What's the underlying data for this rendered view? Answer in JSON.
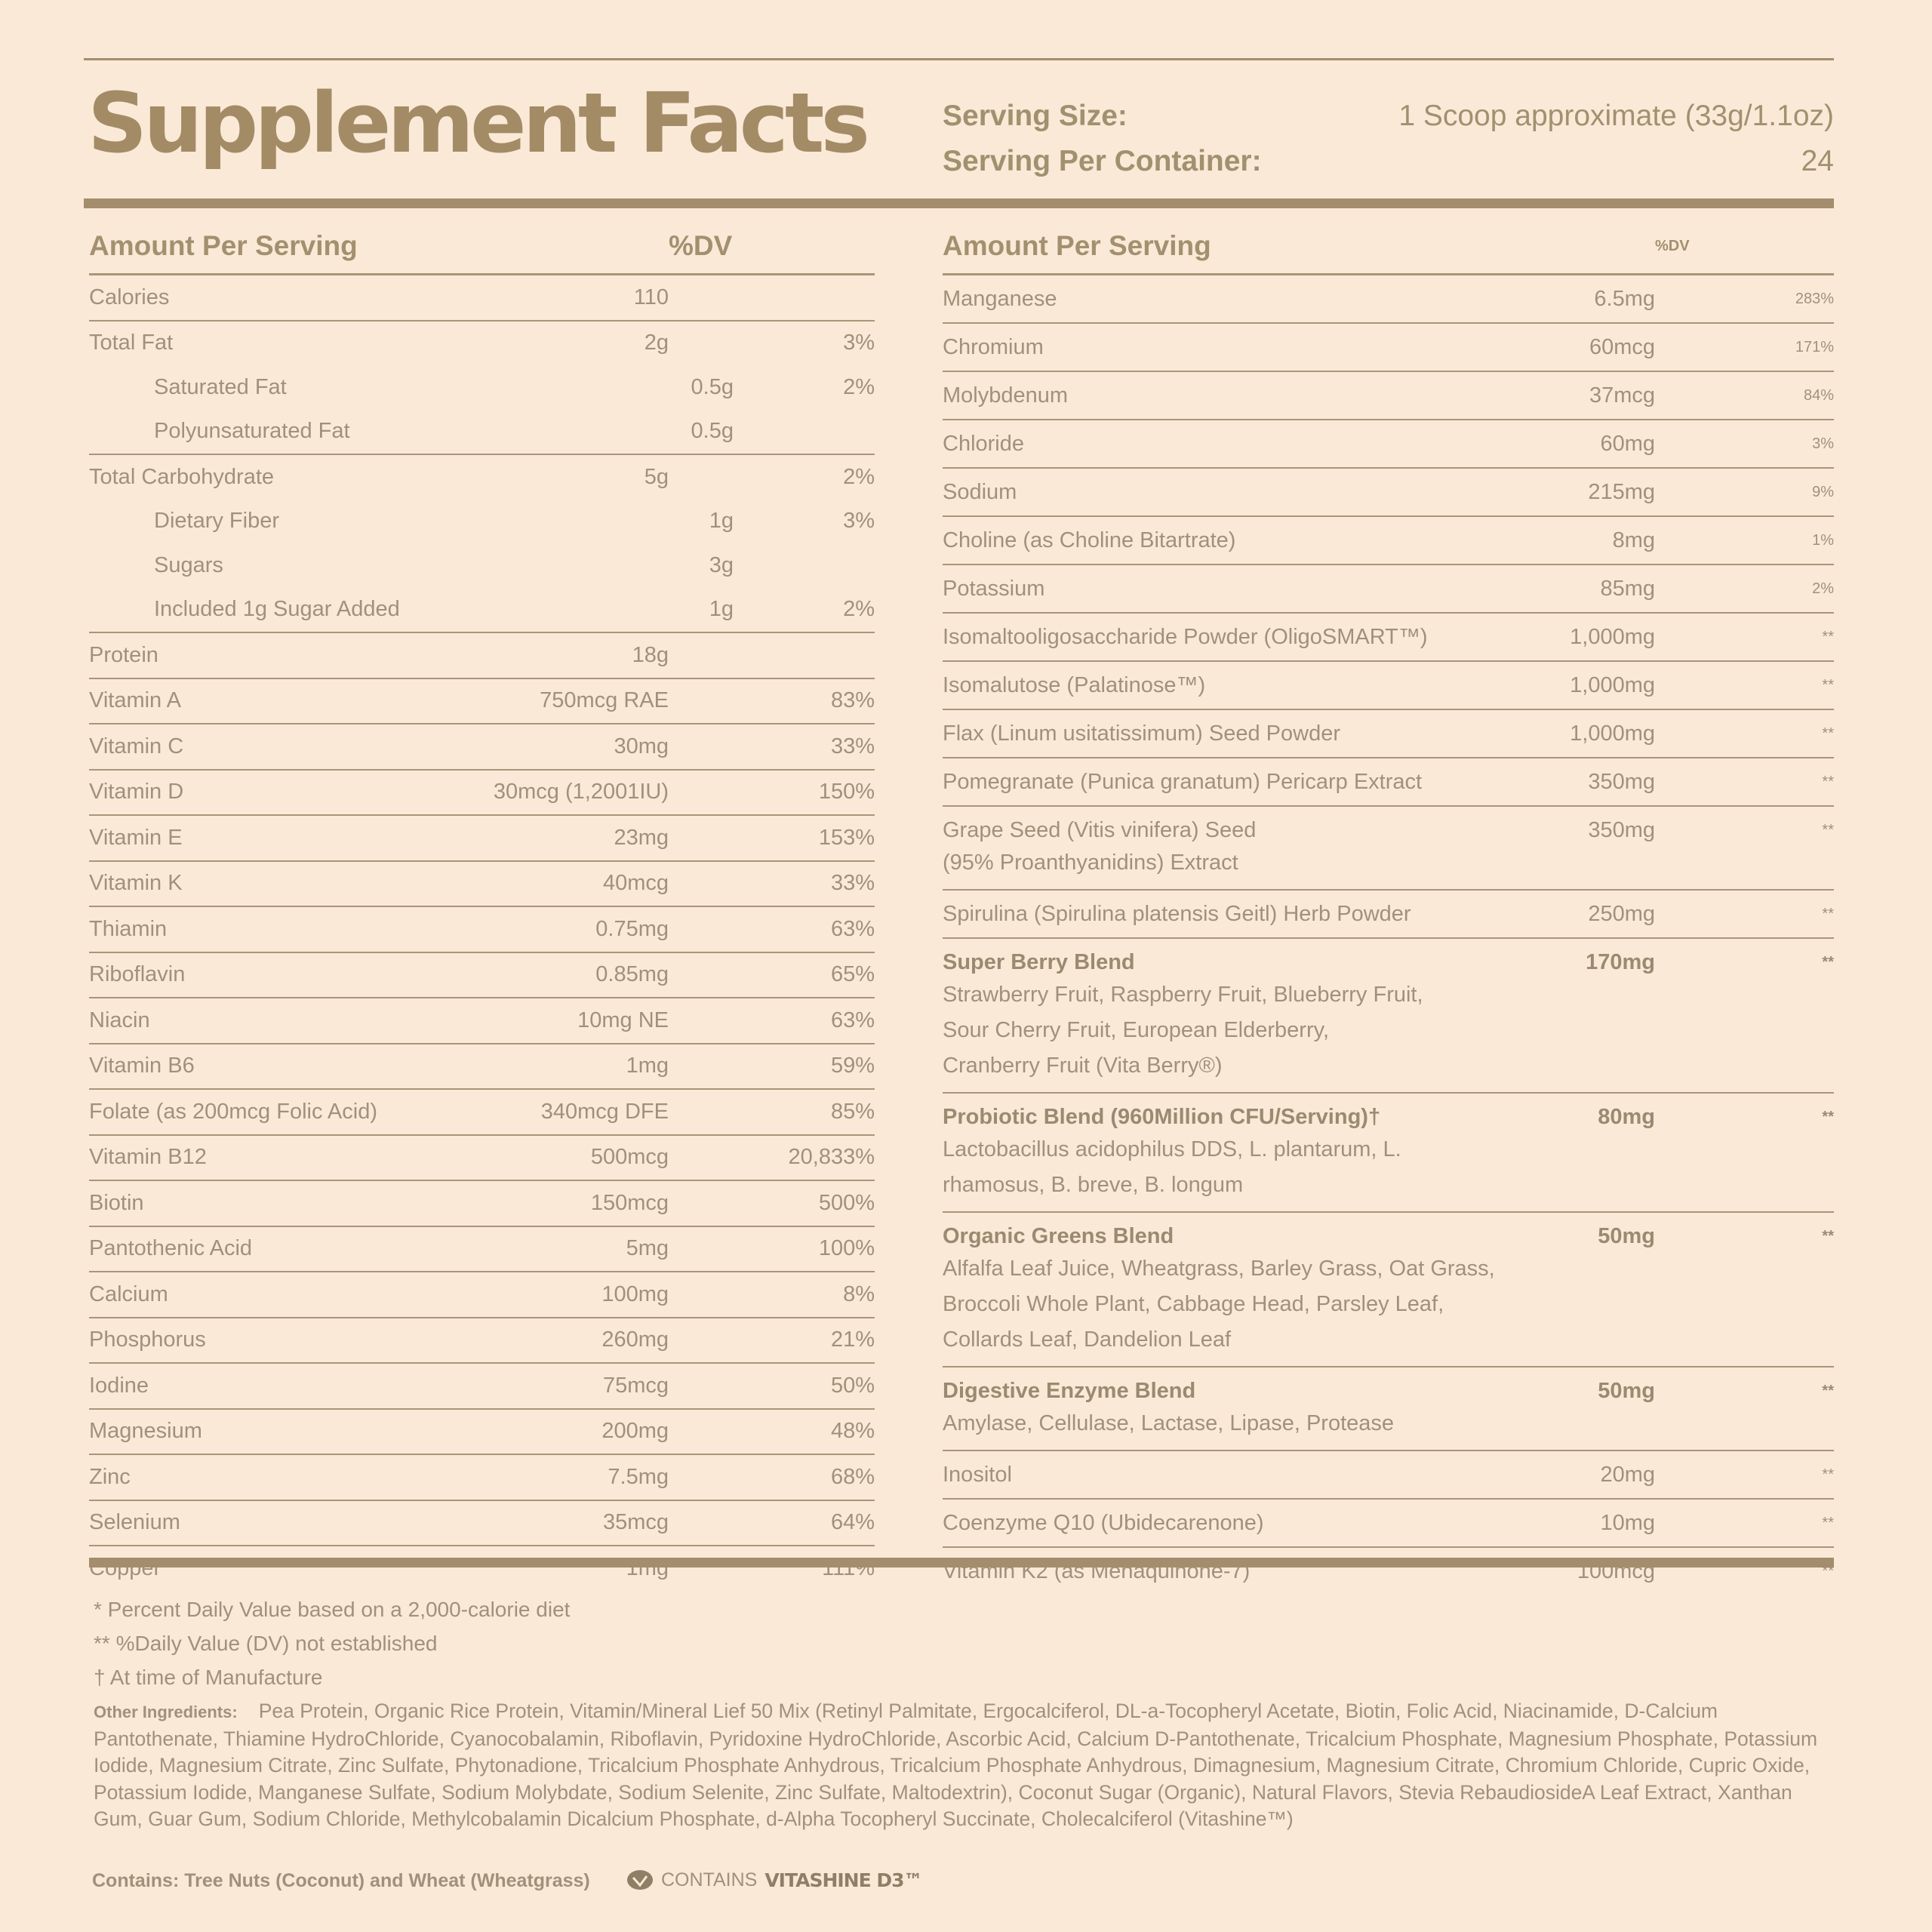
{
  "header": {
    "title": "Supplement Facts",
    "serving_size_label": "Serving Size:",
    "serving_size": "1 Scoop approximate (33g/1.1oz)",
    "servings_label": "Serving Per Container:",
    "servings": "24"
  },
  "left_table": {
    "columns": [
      "Amount Per Serving",
      "%DV"
    ],
    "rows": [
      {
        "name": "Calories",
        "amount": "110"
      },
      {
        "name": "Total Fat",
        "amount": "2g",
        "dv": "3%",
        "items": [
          {
            "name": "Saturated Fat",
            "amount": "0.5g",
            "dv": "2%"
          },
          {
            "name": "Polyunsaturated Fat",
            "amount": "0.5g"
          }
        ]
      },
      {
        "name": "Total Carbohydrate",
        "amount": "5g",
        "dv": "2%",
        "items": [
          {
            "name": "Dietary Fiber",
            "amount": "1g",
            "dv": "3%"
          },
          {
            "name": "Sugars",
            "amount": "3g"
          },
          {
            "name": "Included 1g Sugar Added",
            "amount": "1g",
            "dv": "2%"
          }
        ]
      },
      {
        "name": "Protein",
        "amount": "18g"
      },
      {
        "name": "Vitamin A",
        "amount": "750mcg RAE",
        "dv": "83%"
      },
      {
        "name": "Vitamin C",
        "amount": "30mg",
        "dv": "33%"
      },
      {
        "name": "Vitamin D",
        "amount": "30mcg (1,2001IU)",
        "dv": "150%"
      },
      {
        "name": "Vitamin E",
        "amount": "23mg",
        "dv": "153%"
      },
      {
        "name": "Vitamin K",
        "amount": "40mcg",
        "dv": "33%"
      },
      {
        "name": "Thiamin",
        "amount": "0.75mg",
        "dv": "63%"
      },
      {
        "name": "Riboflavin",
        "amount": "0.85mg",
        "dv": "65%"
      },
      {
        "name": "Niacin",
        "amount": "10mg NE",
        "dv": "63%"
      },
      {
        "name": "Vitamin B6",
        "amount": "1mg",
        "dv": "59%"
      },
      {
        "name": "Folate (as 200mcg Folic Acid)",
        "amount": "340mcg DFE",
        "dv": "85%"
      },
      {
        "name": "Vitamin B12",
        "amount": "500mcg",
        "dv": "20,833%"
      },
      {
        "name": "Biotin",
        "amount": "150mcg",
        "dv": "500%"
      },
      {
        "name": "Pantothenic Acid",
        "amount": "5mg",
        "dv": "100%"
      },
      {
        "name": "Calcium",
        "amount": "100mg",
        "dv": "8%"
      },
      {
        "name": "Phosphorus",
        "amount": "260mg",
        "dv": "21%"
      },
      {
        "name": "Iodine",
        "amount": "75mcg",
        "dv": "50%"
      },
      {
        "name": "Magnesium",
        "amount": "200mg",
        "dv": "48%"
      },
      {
        "name": "Zinc",
        "amount": "7.5mg",
        "dv": "68%"
      },
      {
        "name": "Selenium",
        "amount": "35mcg",
        "dv": "64%"
      },
      {
        "name": "Copper",
        "amount": "1mg",
        "dv": "111%"
      }
    ]
  },
  "right_table": {
    "columns": [
      "Amount Per Serving",
      "%DV"
    ],
    "rows": [
      {
        "name": "Manganese",
        "amount": "6.5mg",
        "dv": "283%"
      },
      {
        "name": "Chromium",
        "amount": "60mcg",
        "dv": "171%"
      },
      {
        "name": "Molybdenum",
        "amount": "37mcg",
        "dv": "84%"
      },
      {
        "name": "Chloride",
        "amount": "60mg",
        "dv": "3%"
      },
      {
        "name": "Sodium",
        "amount": "215mg",
        "dv": "9%"
      },
      {
        "name": "Choline (as Choline Bitartrate)",
        "amount": "8mg",
        "dv": "1%"
      },
      {
        "name": "Potassium",
        "amount": "85mg",
        "dv": "2%"
      },
      {
        "name": "Isomaltooligosaccharide Powder (OligoSMART™)",
        "amount": "1,000mg",
        "dv": "**"
      },
      {
        "name": "Isomalutose (Palatinose™)",
        "amount": "1,000mg",
        "dv": "**"
      },
      {
        "name": "Flax (Linum usitatissimum) Seed Powder",
        "amount": "1,000mg",
        "dv": "**"
      },
      {
        "name": "Pomegranate (Punica granatum) Pericarp Extract",
        "amount": "350mg",
        "dv": "**"
      },
      {
        "name": "Grape Seed (Vitis vinifera) Seed",
        "name_cont": "(95% Proanthyanidins) Extract",
        "amount": "350mg",
        "dv": "**"
      },
      {
        "name": "Spirulina (Spirulina platensis Geitl) Herb Powder",
        "amount": "250mg",
        "dv": "**"
      },
      {
        "name": "Super Berry Blend",
        "amount": "170mg",
        "dv": "**",
        "detail": [
          "Strawberry Fruit, Raspberry Fruit, Blueberry Fruit,",
          "Sour Cherry Fruit, European Elderberry,",
          "Cranberry Fruit  (Vita Berry®)"
        ]
      },
      {
        "name": "Probiotic Blend (960Million CFU/Serving)†",
        "amount": "80mg",
        "dv": "**",
        "detail": [
          "Lactobacillus acidophilus DDS, L. plantarum, L.",
          "rhamosus, B. breve, B. longum"
        ]
      },
      {
        "name": "Organic Greens Blend",
        "amount": "50mg",
        "dv": "**",
        "detail": [
          "Alfalfa Leaf Juice, Wheatgrass, Barley Grass, Oat Grass,",
          "Broccoli Whole Plant, Cabbage Head, Parsley Leaf,",
          "Collards Leaf, Dandelion Leaf"
        ]
      },
      {
        "name": "Digestive Enzyme Blend",
        "amount": "50mg",
        "dv": "**",
        "detail": [
          "Amylase, Cellulase, Lactase, Lipase, Protease"
        ]
      },
      {
        "name": "Inositol",
        "amount": "20mg",
        "dv": "**"
      },
      {
        "name": "Coenzyme Q10 (Ubidecarenone)",
        "amount": "10mg",
        "dv": "**"
      },
      {
        "name": "Vitamin K2 (as Menaquinone-7)",
        "amount": "100mcg",
        "dv": "**"
      }
    ]
  },
  "footnotes": [
    "* Percent Daily Value based on a 2,000-calorie diet",
    "** %Daily Value (DV) not established",
    "† At time of Manufacture"
  ],
  "other_ingredients": {
    "label": "Other Ingredients:",
    "text": "Pea Protein, Organic Rice Protein, Vitamin/Mineral Lief 50 Mix (Retinyl Palmitate, Ergocalciferol, DL-a-Tocopheryl Acetate, Biotin, Folic Acid, Niacinamide, D-Calcium Pantothenate, Thiamine HydroChloride, Cyanocobalamin, Riboflavin, Pyridoxine HydroChloride, Ascorbic Acid, Calcium D-Pantothenate, Tricalcium Phosphate, Magnesium Phosphate, Potassium Iodide, Magnesium Citrate, Zinc Sulfate, Phytonadione, Tricalcium Phosphate Anhydrous, Tricalcium Phosphate Anhydrous, Dimagnesium, Magnesium Citrate, Chromium Chloride, Cupric Oxide, Potassium Iodide, Manganese Sulfate, Sodium Molybdate, Sodium Selenite, Zinc Sulfate, Maltodextrin), Coconut Sugar (Organic), Natural Flavors, Stevia RebaudiosideA Leaf Extract, Xanthan Gum, Guar Gum, Sodium Chloride, Methylcobalamin Dicalcium Phosphate, d-Alpha Tocopheryl Succinate, Cholecalciferol (Vitashine™)"
  },
  "contains": "Contains: Tree Nuts (Coconut) and Wheat (Wheatgrass)",
  "badge": {
    "prefix": "CONTAINS",
    "brand": "VITASHINE D3™"
  }
}
